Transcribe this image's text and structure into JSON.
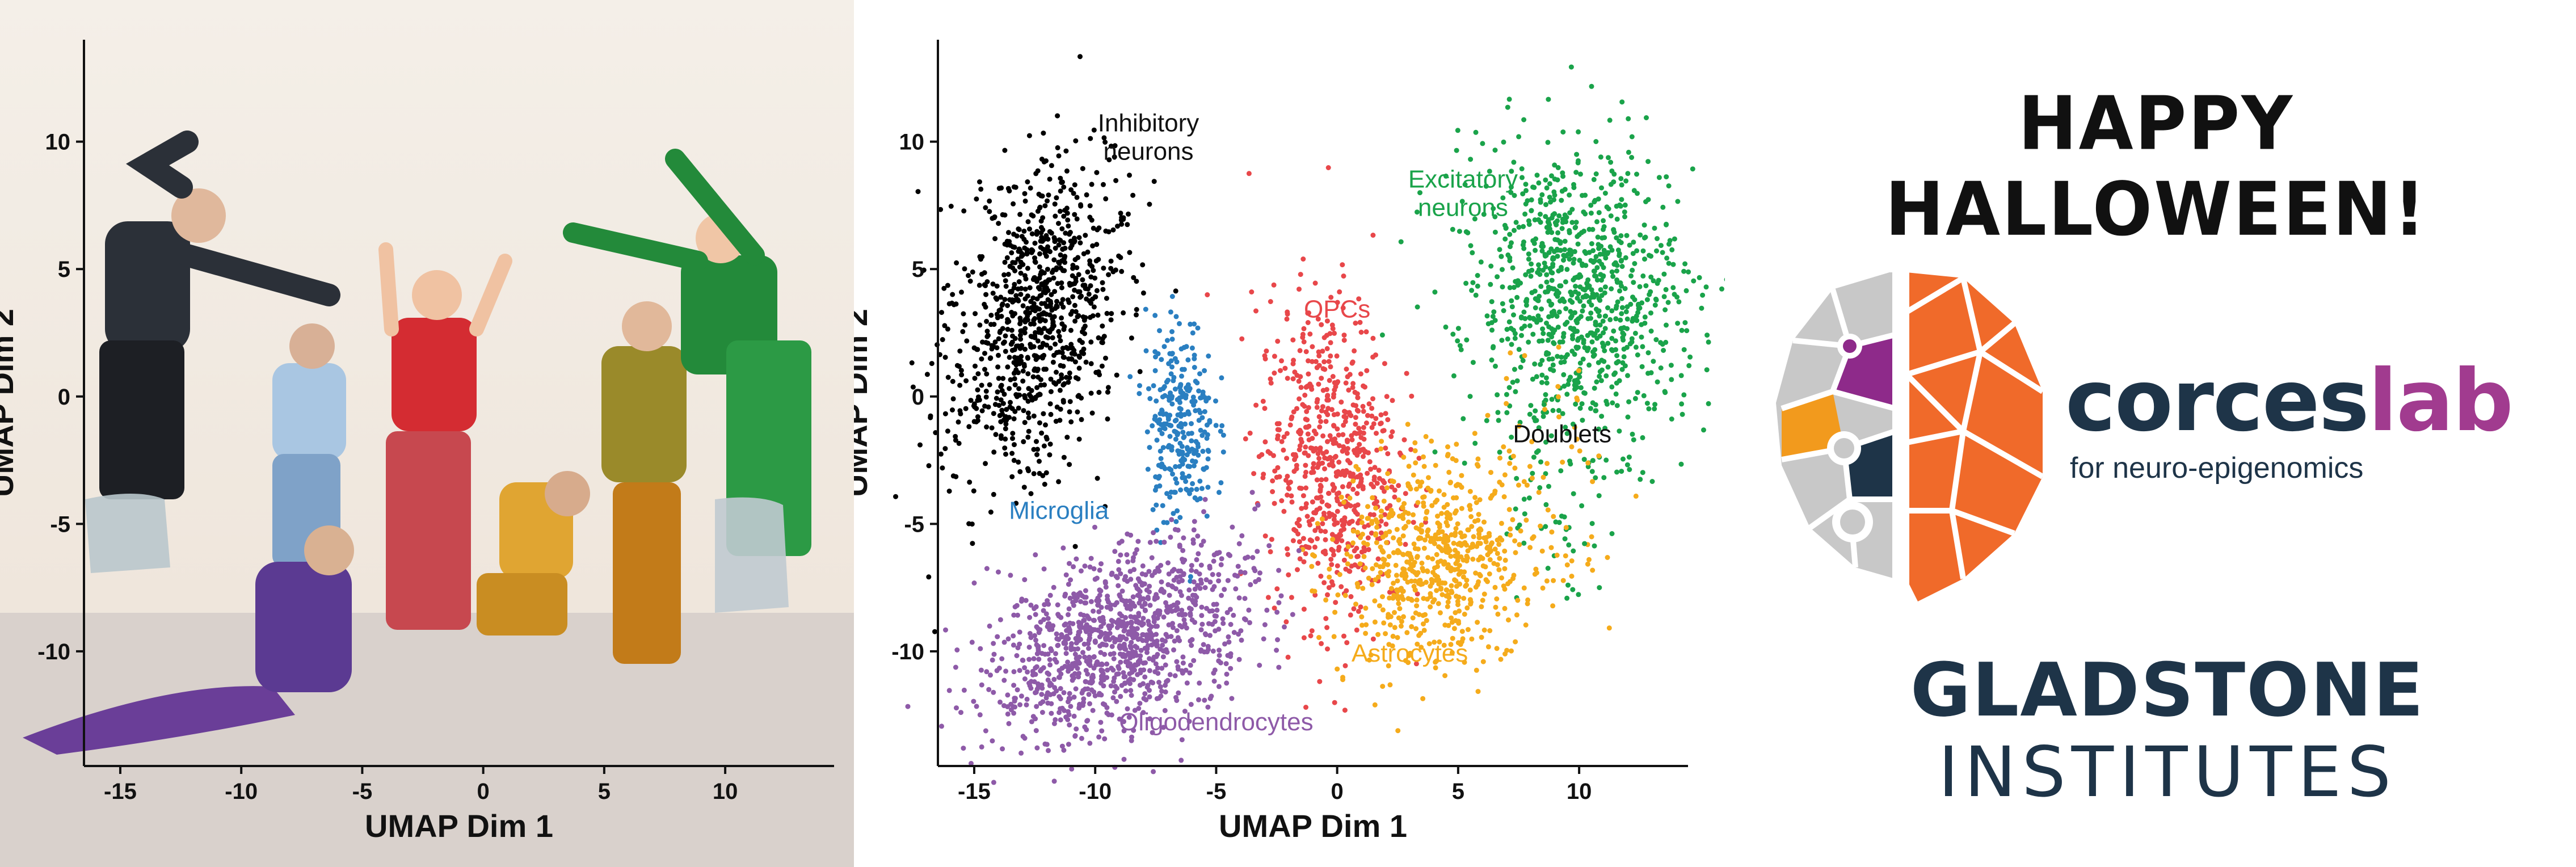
{
  "chart_data": [
    {
      "type": "scatter",
      "panel": "photo",
      "title": "",
      "xlabel": "UMAP Dim 1",
      "ylabel": "UMAP Dim 2",
      "xticks": [
        "-15",
        "-10",
        "-5",
        "0",
        "5",
        "10"
      ],
      "yticks": [
        "10",
        "5",
        "0",
        "-5",
        "-10"
      ],
      "xlim": [
        -16.5,
        14.5
      ],
      "ylim": [
        -14.5,
        14
      ],
      "series": []
    },
    {
      "type": "scatter",
      "panel": "umap",
      "title": "",
      "xlabel": "UMAP Dim 1",
      "ylabel": "UMAP Dim 2",
      "xticks": [
        "-15",
        "-10",
        "-5",
        "0",
        "5",
        "10"
      ],
      "yticks": [
        "10",
        "5",
        "0",
        "-5",
        "-10"
      ],
      "xlim": [
        -16.5,
        14.5
      ],
      "ylim": [
        -14.5,
        14
      ],
      "clusters": [
        {
          "name": "Inhibitory\nneurons",
          "label_lines": [
            "Inhibitory",
            "neurons"
          ],
          "color": "#000000",
          "center": [
            -12.5,
            3
          ],
          "label_at": [
            -7.8,
            10.4
          ],
          "label_color": "#111111"
        },
        {
          "name": "Excitatory\nneurons",
          "label_lines": [
            "Excitatory",
            "neurons"
          ],
          "color": "#1aa34a",
          "center": [
            10,
            4
          ],
          "label_at": [
            5.2,
            8.2
          ],
          "label_color": "#1aa34a"
        },
        {
          "name": "OPCs",
          "label_lines": [
            "OPCs"
          ],
          "color": "#e8474a",
          "center": [
            -0.3,
            -2.5
          ],
          "label_at": [
            0,
            3.1
          ],
          "label_color": "#e8474a"
        },
        {
          "name": "Microglia",
          "label_lines": [
            "Microglia"
          ],
          "color": "#2a7fc1",
          "center": [
            -6.5,
            -1
          ],
          "label_at": [
            -11.5,
            -4.8
          ],
          "label_color": "#2a7fc1"
        },
        {
          "name": "Doublets",
          "label_lines": [
            "Doublets"
          ],
          "color": "#1aa34a",
          "center": [
            9,
            -3
          ],
          "label_at": [
            9.3,
            -1.8
          ],
          "label_color": "#111111"
        },
        {
          "name": "Astrocytes",
          "label_lines": [
            "Astrocytes"
          ],
          "color": "#f5ab1b",
          "center": [
            4,
            -6.5
          ],
          "label_at": [
            3,
            -10.4
          ],
          "label_color": "#f5ab1b"
        },
        {
          "name": "Oligodendrocytes",
          "label_lines": [
            "Oligodendrocytes"
          ],
          "color": "#8e5aa8",
          "center": [
            -9,
            -9.5
          ],
          "label_at": [
            -5,
            -13.1
          ],
          "label_color": "#8e5aa8"
        }
      ]
    }
  ],
  "branding": {
    "greeting": "HAPPY HALLOWEEN!",
    "lab_name_part1": "corces",
    "lab_name_part2": "lab",
    "lab_tagline": "for neuro-epigenomics",
    "institute_line1": "GLADSTONE",
    "institute_line2": "INSTITUTES"
  },
  "colors": {
    "navy": "#1e3448",
    "magenta": "#a13b8f",
    "orange": "#f06a2a",
    "grey": "#c8c8c8"
  }
}
